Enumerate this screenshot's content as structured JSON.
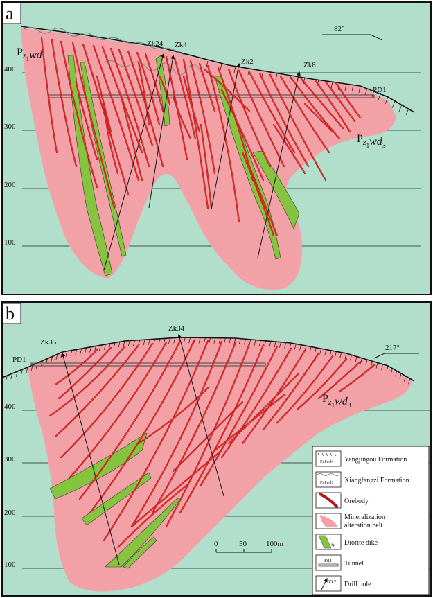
{
  "panel_a": {
    "label": "a",
    "azimuth": "82°",
    "formation_top": "Pz1wd",
    "formation_main": "Pz1wd3",
    "tunnel_label": "PD1",
    "levels": [
      "400",
      "300",
      "200",
      "100"
    ],
    "drill_holes": [
      "Zk24",
      "Zk4",
      "Zk2",
      "Zk8"
    ]
  },
  "panel_b": {
    "label": "b",
    "azimuth": "217°",
    "formation_main": "Pz1wd3",
    "tunnel_label": "PD1",
    "levels": [
      "400",
      "300",
      "200",
      "100"
    ],
    "drill_holes": [
      "Zk35",
      "Zk34"
    ],
    "scale": {
      "ticks": [
        "0",
        "50",
        "100m"
      ]
    }
  },
  "legend": {
    "items": [
      {
        "label": "Yangjingou Formation",
        "symbol": "Pz1wd4"
      },
      {
        "label": "Xiangfangzi Formation",
        "symbol": "Pz1wd1"
      },
      {
        "label": "Orebody",
        "symbol": ""
      },
      {
        "label": "Mineralization\nalteration belt",
        "symbol": ""
      },
      {
        "label": "Diorite dike",
        "symbol": "δμ"
      },
      {
        "label": "Tunnel",
        "symbol": "Pd1"
      },
      {
        "label": "Drill hole",
        "symbol": "Zk2"
      }
    ]
  },
  "colors": {
    "background": "#b2dfcb",
    "alteration": "#f2a2a6",
    "orebody": "#d4201f",
    "diorite": "#86c43f"
  }
}
